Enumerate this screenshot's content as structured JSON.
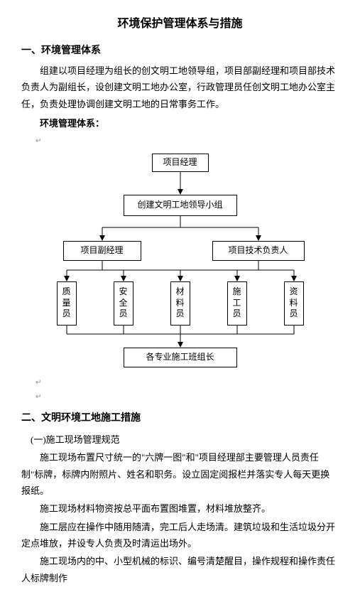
{
  "title": "环境保护管理体系与措施",
  "section1": {
    "heading": "一、环境管理体系",
    "p1": "组建以项目经理为组长的创文明工地领导组，项目部副经理和项目部技术负责人为副组长，设创建文明工地办公室，行政管理员任创文明工地办公室主任，负责处理协调创建文明工地的日常事务工作。",
    "sublabel": "环境管理体系："
  },
  "chart": {
    "type": "flowchart",
    "nodes": {
      "pm": "项目经理",
      "lead": "创建文明工地领导小组",
      "deputy": "项目副经理",
      "tech": "项目技术负责人",
      "q": "质量员",
      "s": "安全员",
      "m": "材料员",
      "c": "施工员",
      "d": "资料员",
      "foreman": "各专业施工班组长"
    },
    "colors": {
      "line": "#000000",
      "box_border": "#000000",
      "bg": "#ffffff"
    }
  },
  "section2": {
    "heading": "二、文明环境工地施工措施",
    "sub1": "(一)施工现场管理规范",
    "p1": "施工现场布置尺寸统一的\"六牌一图\"和\"项目经理部主要管理人员责任制\"标牌，标牌内附照片、姓名和职务。设立固定阅报栏并落实专人每天更换报纸。",
    "p2": "施工现场材料物资按总平面布置图堆置，材料堆放整齐。",
    "p3": "施工层应在操作中随用随清，完工后人走场清。建筑垃圾和生活垃圾分开定点堆放，并设专人负责及时清运出场外。",
    "p4": "施工现场内的中、小型机械的标识、编号清楚醒目，操作规程和操作责任人标牌制作"
  },
  "marker": "↵"
}
